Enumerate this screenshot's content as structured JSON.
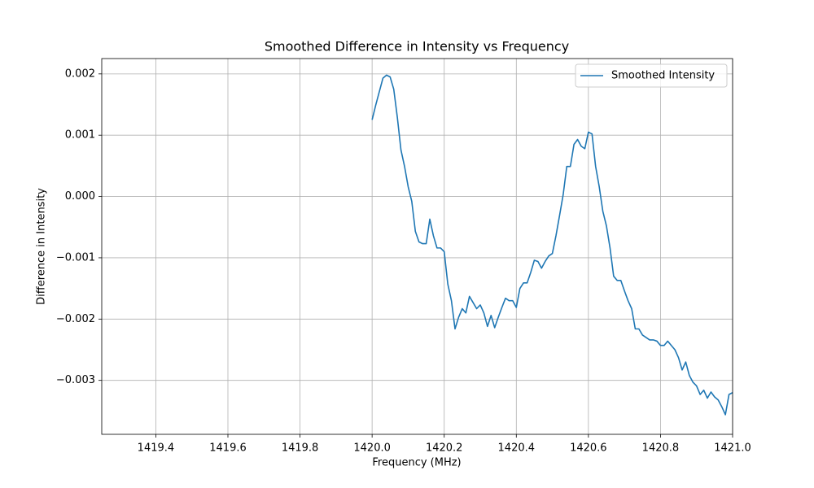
{
  "chart_data": {
    "type": "line",
    "title": "Smoothed Difference in Intensity vs Frequency",
    "x_label": "Frequency (MHz)",
    "y_label": "Difference in Intensity",
    "x": [
      1420.0,
      1420.01,
      1420.02,
      1420.03,
      1420.04,
      1420.05,
      1420.06,
      1420.07,
      1420.08,
      1420.09,
      1420.1,
      1420.11,
      1420.12,
      1420.13,
      1420.14,
      1420.15,
      1420.16,
      1420.17,
      1420.18,
      1420.19,
      1420.2,
      1420.21,
      1420.22,
      1420.23,
      1420.24,
      1420.25,
      1420.26,
      1420.27,
      1420.28,
      1420.29,
      1420.3,
      1420.31,
      1420.32,
      1420.33,
      1420.34,
      1420.35,
      1420.36,
      1420.37,
      1420.38,
      1420.39,
      1420.4,
      1420.41,
      1420.42,
      1420.43,
      1420.44,
      1420.45,
      1420.46,
      1420.47,
      1420.48,
      1420.49,
      1420.5,
      1420.51,
      1420.52,
      1420.53,
      1420.54,
      1420.55,
      1420.56,
      1420.57,
      1420.58,
      1420.59,
      1420.6,
      1420.61,
      1420.62,
      1420.63,
      1420.64,
      1420.65,
      1420.66,
      1420.67,
      1420.68,
      1420.69,
      1420.7,
      1420.71,
      1420.72,
      1420.73,
      1420.74,
      1420.75,
      1420.76,
      1420.77,
      1420.78,
      1420.79,
      1420.8,
      1420.81,
      1420.82,
      1420.83,
      1420.84,
      1420.85,
      1420.86,
      1420.87,
      1420.88,
      1420.89,
      1420.9,
      1420.91,
      1420.92,
      1420.93,
      1420.94,
      1420.95,
      1420.96,
      1420.97,
      1420.98,
      1420.99,
      1421.0
    ],
    "series": [
      {
        "name": "Smoothed Intensity",
        "color": "#1f77b4",
        "values": [
          0.00125,
          0.00149,
          0.00171,
          0.00193,
          0.00198,
          0.00195,
          0.00175,
          0.00129,
          0.00076,
          0.00049,
          0.00016,
          -8e-05,
          -0.00057,
          -0.00074,
          -0.00077,
          -0.00077,
          -0.00037,
          -0.00064,
          -0.00084,
          -0.00084,
          -0.0009,
          -0.00143,
          -0.0017,
          -0.00216,
          -0.00197,
          -0.00183,
          -0.0019,
          -0.00163,
          -0.00173,
          -0.00183,
          -0.00177,
          -0.0019,
          -0.00212,
          -0.00194,
          -0.00214,
          -0.00197,
          -0.00181,
          -0.00166,
          -0.0017,
          -0.0017,
          -0.00181,
          -0.0015,
          -0.00141,
          -0.00141,
          -0.00124,
          -0.00104,
          -0.00106,
          -0.00117,
          -0.00106,
          -0.00097,
          -0.00093,
          -0.00064,
          -0.00031,
          3e-05,
          0.00049,
          0.00049,
          0.00085,
          0.00093,
          0.00082,
          0.00078,
          0.00105,
          0.00102,
          0.00049,
          0.00016,
          -0.00024,
          -0.00048,
          -0.00084,
          -0.0013,
          -0.00137,
          -0.00137,
          -0.00154,
          -0.0017,
          -0.00183,
          -0.00216,
          -0.00216,
          -0.00226,
          -0.0023,
          -0.00234,
          -0.00234,
          -0.00236,
          -0.00243,
          -0.00243,
          -0.00236,
          -0.00243,
          -0.0025,
          -0.00263,
          -0.00283,
          -0.0027,
          -0.00292,
          -0.00303,
          -0.00309,
          -0.00323,
          -0.00316,
          -0.00329,
          -0.00319,
          -0.00327,
          -0.00332,
          -0.00343,
          -0.00356,
          -0.00323,
          -0.0032
        ]
      }
    ],
    "xlim": [
      1419.25,
      1421.0
    ],
    "ylim": [
      -0.00388,
      0.00225
    ],
    "xticks": [
      1419.4,
      1419.6,
      1419.8,
      {
        "value": 1420.0,
        "label": "1420.0"
      },
      1420.2,
      1420.4,
      1420.6,
      1420.8,
      {
        "value": 1421.0,
        "label": "1421.0"
      }
    ],
    "yticks": [
      {
        "value": -0.003,
        "label": "−0.003"
      },
      {
        "value": -0.002,
        "label": "−0.002"
      },
      {
        "value": -0.001,
        "label": "−0.001"
      },
      {
        "value": 0,
        "label": "0.000"
      },
      0.001,
      0.002
    ],
    "grid": true,
    "legend": "upper right"
  }
}
